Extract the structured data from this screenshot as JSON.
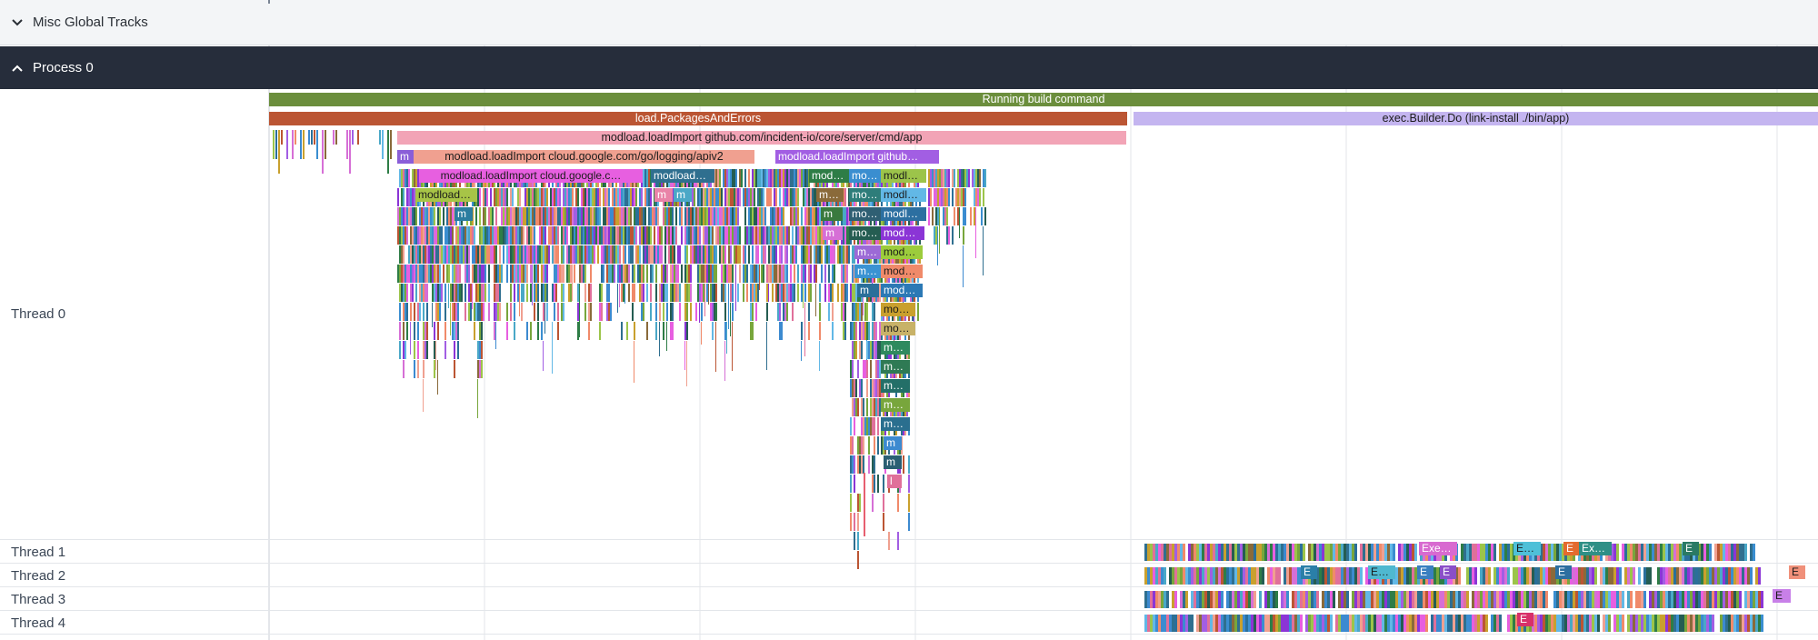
{
  "tracks": {
    "misc": {
      "title": "Misc Global Tracks"
    },
    "process": {
      "title": "Process 0"
    },
    "threads": [
      "Thread 0",
      "Thread 1",
      "Thread 2",
      "Thread 3",
      "Thread 4"
    ]
  },
  "slices": {
    "running_build": "Running build command",
    "load_packages": "load.PackagesAndErrors",
    "exec_builder": "exec.Builder.Do (link-install ./bin/app)",
    "modload_app": "modload.loadImport github.com/incident-io/core/server/cmd/app",
    "m1": "m",
    "modload_logging": "modload.loadImport cloud.google.com/go/logging/apiv2",
    "modload_github": "modload.loadImport github…",
    "modload_cloud_c": "modload.loadImport cloud.google.c…",
    "modload_short": "modload…",
    "modload_ell": "modload…",
    "modload_left": "modload…",
    "mod_a": "mod…",
    "mo_a": "mo…",
    "modl_a": "modl…",
    "m_a": "m",
    "m_b": "m",
    "m_dot": "m…",
    "mo_b": "mo…",
    "modl_b": "modl…",
    "m_c": "m",
    "modl_c": "modl…",
    "m_d": "m",
    "mod_purple": "mod…",
    "m_e": "m…",
    "mod_c": "mod…",
    "m_f": "m…",
    "mod_d": "mod…",
    "m_g": "m",
    "mod_e": "mod…",
    "mo_c": "mo…",
    "mo_d": "mo…",
    "m_h": "m…",
    "m_i": "m…",
    "m_j": "m…",
    "m_k": "m…",
    "m_l": "m…",
    "m_m": "m",
    "m_n": "m",
    "l_last": "l",
    "main_label": "m",
    "exe_a": "Exe…",
    "e_a": "E…",
    "e_b": "E",
    "ex_a": "Ex…",
    "e_c": "E",
    "e_t2a": "E",
    "e_t2b": "E…",
    "e_t2c": "E",
    "e_t2d": "E",
    "e_t2e": "E",
    "e_t2f": "E",
    "e_t3": "E",
    "e_t4": "E"
  },
  "colors": {
    "running": "#6b8e3c",
    "load": "#bb5533",
    "exec": "#c4b5f0",
    "modapp": "#f2a4b6",
    "header_dark": "#262d3b",
    "pink": "#e75fe0",
    "purple": "#a25ee3"
  }
}
